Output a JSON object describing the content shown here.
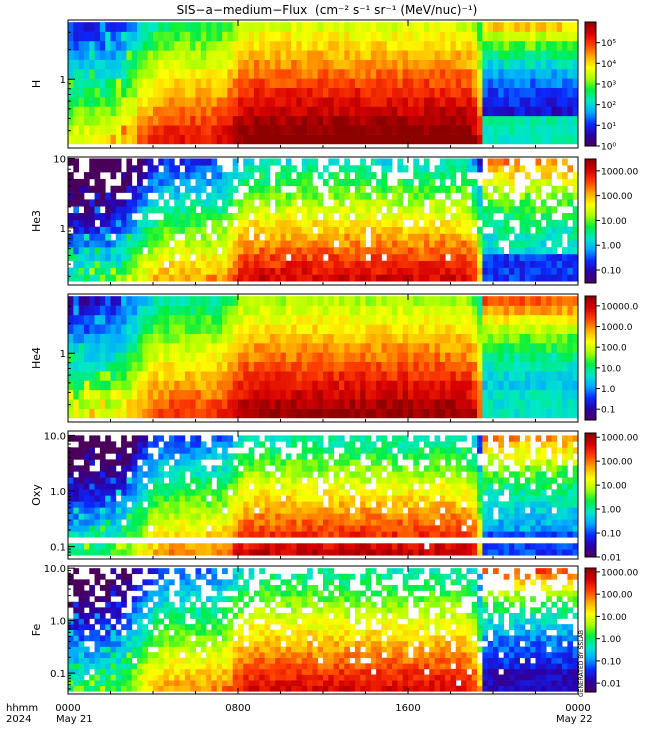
{
  "title": "SIS−a−medium−Flux",
  "title_units": "(cm⁻² s⁻¹ sr⁻¹ (MeV/nuc)⁻¹)",
  "footer": {
    "time_label": "hhmm",
    "year_label": "2024",
    "start_date": "May 21",
    "end_date": "May 22"
  },
  "side_note": "GENERATED BY SSLAB",
  "colors": {
    "colormap": [
      "#4a005a",
      "#2b00a8",
      "#0a2aff",
      "#00a8ff",
      "#00e8c8",
      "#00ee40",
      "#a8ff00",
      "#ffff00",
      "#ffa800",
      "#ff4000",
      "#d80000",
      "#8c0000"
    ],
    "missing": "#ffffff",
    "gap_line": "#ffffff"
  },
  "chart_data": [
    {
      "type": "heatmap",
      "ylabel": "H",
      "y_scale": "log",
      "ylim": [
        0.2,
        4.0
      ],
      "y_ticks": [
        {
          "value": 1,
          "label": "1"
        }
      ],
      "x_ticks": [
        {
          "value": 0,
          "label": "0000"
        },
        {
          "value": 8,
          "label": "0800"
        },
        {
          "value": 16,
          "label": "1600"
        },
        {
          "value": 24,
          "label": "0000"
        }
      ],
      "xlim_hours": [
        0,
        24
      ],
      "color_scale": "log",
      "color_range": [
        1,
        1000000
      ],
      "colorbar_ticks": [
        {
          "value": 1,
          "label": "10⁰"
        },
        {
          "value": 10,
          "label": "10¹"
        },
        {
          "value": 100,
          "label": "10²"
        },
        {
          "value": 1000,
          "label": "10³"
        },
        {
          "value": 10000,
          "label": "10⁴"
        },
        {
          "value": 100000,
          "label": "10⁵"
        }
      ],
      "n_bins": 13,
      "bin_lo": 0.22,
      "bin_hi": 3.8,
      "peak_log": 5.9,
      "low_log": 5.2,
      "post_bg": 0.6,
      "post_top": 4.4,
      "post_low": 2.3,
      "sparsity": 0.0,
      "seed": 11
    },
    {
      "type": "heatmap",
      "ylabel": "He3",
      "y_scale": "log",
      "ylim": [
        0.15,
        10.5
      ],
      "y_ticks": [
        {
          "value": 1,
          "label": "1"
        },
        {
          "value": 10,
          "label": "10"
        }
      ],
      "x_ticks": [
        {
          "value": 0,
          "label": "0000"
        },
        {
          "value": 8,
          "label": "0800"
        },
        {
          "value": 16,
          "label": "1600"
        },
        {
          "value": 24,
          "label": "0000"
        }
      ],
      "xlim_hours": [
        0,
        24
      ],
      "color_scale": "log",
      "color_range": [
        0.03,
        3000
      ],
      "colorbar_ticks": [
        {
          "value": 0.1,
          "label": "0.10"
        },
        {
          "value": 1,
          "label": "1.00"
        },
        {
          "value": 10,
          "label": "10.00"
        },
        {
          "value": 100,
          "label": "100.00"
        },
        {
          "value": 1000,
          "label": "1000.00"
        }
      ],
      "n_bins": 18,
      "bin_lo": 0.17,
      "bin_hi": 10,
      "peak_log": 2.9,
      "low_log": 1.9,
      "post_bg": 0.1,
      "post_top": 2.4,
      "post_low": -0.6,
      "sparsity": 0.35,
      "seed": 23
    },
    {
      "type": "heatmap",
      "ylabel": "He4",
      "y_scale": "log",
      "ylim": [
        0.2,
        4.0
      ],
      "y_ticks": [
        {
          "value": 1,
          "label": "1"
        }
      ],
      "x_ticks": [
        {
          "value": 0,
          "label": "0000"
        },
        {
          "value": 8,
          "label": "0800"
        },
        {
          "value": 16,
          "label": "1600"
        },
        {
          "value": 24,
          "label": "0000"
        }
      ],
      "xlim_hours": [
        0,
        24
      ],
      "color_scale": "log",
      "color_range": [
        0.03,
        30000
      ],
      "colorbar_ticks": [
        {
          "value": 0.1,
          "label": "0.1"
        },
        {
          "value": 1,
          "label": "1.0"
        },
        {
          "value": 10,
          "label": "10.0"
        },
        {
          "value": 100,
          "label": "100.0"
        },
        {
          "value": 1000,
          "label": "1000.0"
        },
        {
          "value": 10000,
          "label": "10000.0"
        }
      ],
      "n_bins": 13,
      "bin_lo": 0.22,
      "bin_hi": 3.8,
      "peak_log": 4.1,
      "low_log": 3.4,
      "post_bg": 0.2,
      "post_top": 3.6,
      "post_low": 0.6,
      "sparsity": 0.0,
      "seed": 37
    },
    {
      "type": "heatmap",
      "ylabel": "Oxy",
      "y_scale": "log",
      "ylim": [
        0.06,
        12
      ],
      "y_ticks": [
        {
          "value": 0.1,
          "label": "0.1"
        },
        {
          "value": 1,
          "label": "1.0"
        },
        {
          "value": 10,
          "label": "10.0"
        }
      ],
      "x_ticks": [
        {
          "value": 0,
          "label": "0000"
        },
        {
          "value": 8,
          "label": "0800"
        },
        {
          "value": 16,
          "label": "1600"
        },
        {
          "value": 24,
          "label": "0000"
        }
      ],
      "xlim_hours": [
        0,
        24
      ],
      "color_scale": "log",
      "color_range": [
        0.01,
        1500
      ],
      "colorbar_ticks": [
        {
          "value": 0.01,
          "label": "0.01"
        },
        {
          "value": 0.1,
          "label": "0.10"
        },
        {
          "value": 1,
          "label": "1.00"
        },
        {
          "value": 10,
          "label": "10.00"
        },
        {
          "value": 100,
          "label": "100.00"
        },
        {
          "value": 1000,
          "label": "1000.00"
        }
      ],
      "n_bins": 20,
      "bin_lo": 0.07,
      "bin_hi": 10,
      "peak_log": 2.7,
      "low_log": 1.6,
      "post_bg": -0.6,
      "post_top": 2.0,
      "post_low": -1.0,
      "sparsity": 0.3,
      "seed": 51,
      "gap_band": [
        0.115,
        0.14
      ]
    },
    {
      "type": "heatmap",
      "ylabel": "Fe",
      "y_scale": "log",
      "ylim": [
        0.04,
        11
      ],
      "y_ticks": [
        {
          "value": 0.1,
          "label": "0.1"
        },
        {
          "value": 1,
          "label": "1.0"
        },
        {
          "value": 10,
          "label": "10.0"
        }
      ],
      "x_ticks": [
        {
          "value": 0,
          "label": "0000"
        },
        {
          "value": 8,
          "label": "0800"
        },
        {
          "value": 16,
          "label": "1600"
        },
        {
          "value": 24,
          "label": "0000"
        }
      ],
      "xlim_hours": [
        0,
        24
      ],
      "color_scale": "log",
      "color_range": [
        0.004,
        1500
      ],
      "colorbar_ticks": [
        {
          "value": 0.01,
          "label": "0.01"
        },
        {
          "value": 0.1,
          "label": "0.10"
        },
        {
          "value": 1,
          "label": "1.00"
        },
        {
          "value": 10,
          "label": "10.00"
        },
        {
          "value": 100,
          "label": "100.00"
        },
        {
          "value": 1000,
          "label": "1000.00"
        }
      ],
      "n_bins": 22,
      "bin_lo": 0.045,
      "bin_hi": 10,
      "peak_log": 2.6,
      "low_log": 1.4,
      "post_bg": -1.6,
      "post_top": 2.3,
      "post_low": -1.8,
      "sparsity": 0.5,
      "seed": 67
    }
  ]
}
